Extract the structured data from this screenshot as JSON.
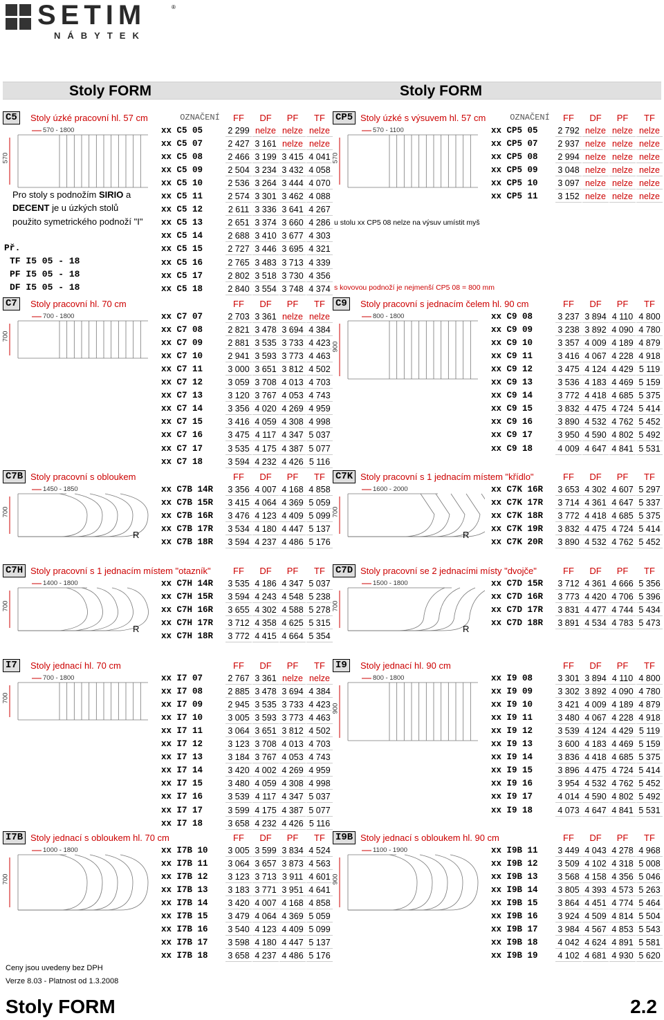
{
  "logo": {
    "brand": "SETIM",
    "registered": "®",
    "sub": "NÁBYTEK"
  },
  "band": {
    "left": "Stoly FORM",
    "right": "Stoly FORM"
  },
  "headers": {
    "oz": "OZNAČENÍ",
    "ff": "FF",
    "df": "DF",
    "pf": "PF",
    "tf": "TF"
  },
  "sections": [
    {
      "id": "c5",
      "code": "C5",
      "title": "Stoly úzké pracovní hl. 57 cm",
      "oz": true,
      "dim_w": "570 - 1800",
      "dim_h": "570",
      "shape": "plain",
      "rows": [
        [
          "xx C5  05",
          "2 299",
          "nelze",
          "nelze",
          "nelze"
        ],
        [
          "xx C5  07",
          "2 427",
          "3 161",
          "nelze",
          "nelze"
        ],
        [
          "xx C5  08",
          "2 466",
          "3 199",
          "3 415",
          "4 041"
        ],
        [
          "xx C5  09",
          "2 504",
          "3 234",
          "3 432",
          "4 058"
        ],
        [
          "xx C5  10",
          "2 536",
          "3 264",
          "3 444",
          "4 070"
        ],
        [
          "xx C5  11",
          "2 574",
          "3 301",
          "3 462",
          "4 088"
        ],
        [
          "xx C5  12",
          "2 611",
          "3 336",
          "3 641",
          "4 267"
        ],
        [
          "xx C5  13",
          "2 651",
          "3 374",
          "3 660",
          "4 286"
        ],
        [
          "xx C5  14",
          "2 688",
          "3 410",
          "3 677",
          "4 303"
        ],
        [
          "xx C5  15",
          "2 727",
          "3 446",
          "3 695",
          "4 321"
        ],
        [
          "xx C5  16",
          "2 765",
          "3 483",
          "3 713",
          "4 339"
        ],
        [
          "xx C5  17",
          "2 802",
          "3 518",
          "3 730",
          "4 356"
        ],
        [
          "xx C5  18",
          "2 840",
          "3 554",
          "3 748",
          "4 374"
        ]
      ]
    },
    {
      "id": "cp5",
      "code": "CP5",
      "title": "Stoly úzké s výsuvem hl. 57 cm",
      "oz": true,
      "dim_w": "570 - 1100",
      "dim_h": "570",
      "shape": "plain",
      "rows": [
        [
          "xx CP5 05",
          "2 792",
          "nelze",
          "nelze",
          "nelze"
        ],
        [
          "xx CP5 07",
          "2 937",
          "nelze",
          "nelze",
          "nelze"
        ],
        [
          "xx CP5 08",
          "2 994",
          "nelze",
          "nelze",
          "nelze"
        ],
        [
          "xx CP5 09",
          "3 048",
          "nelze",
          "nelze",
          "nelze"
        ],
        [
          "xx CP5 10",
          "3 097",
          "nelze",
          "nelze",
          "nelze"
        ],
        [
          "xx CP5 11",
          "3 152",
          "nelze",
          "nelze",
          "nelze"
        ]
      ]
    },
    {
      "id": "c7",
      "code": "C7",
      "title": "Stoly pracovní hl. 70 cm",
      "oz": false,
      "dim_w": "700 - 1800",
      "dim_h": "700",
      "shape": "plain",
      "rows": [
        [
          "xx C7  07",
          "2 703",
          "3 361",
          "nelze",
          "nelze"
        ],
        [
          "xx C7  08",
          "2 821",
          "3 478",
          "3 694",
          "4 384"
        ],
        [
          "xx C7  09",
          "2 881",
          "3 535",
          "3 733",
          "4 423"
        ],
        [
          "xx C7  10",
          "2 941",
          "3 593",
          "3 773",
          "4 463"
        ],
        [
          "xx C7  11",
          "3 000",
          "3 651",
          "3 812",
          "4 502"
        ],
        [
          "xx C7  12",
          "3 059",
          "3 708",
          "4 013",
          "4 703"
        ],
        [
          "xx C7  13",
          "3 120",
          "3 767",
          "4 053",
          "4 743"
        ],
        [
          "xx C7  14",
          "3 356",
          "4 020",
          "4 269",
          "4 959"
        ],
        [
          "xx C7  15",
          "3 416",
          "4 059",
          "4 308",
          "4 998"
        ],
        [
          "xx C7  16",
          "3 475",
          "4 117",
          "4 347",
          "5 037"
        ],
        [
          "xx C7  17",
          "3 535",
          "4 175",
          "4 387",
          "5 077"
        ],
        [
          "xx C7  18",
          "3 594",
          "4 232",
          "4 426",
          "5 116"
        ]
      ]
    },
    {
      "id": "c9",
      "code": "C9",
      "title": "Stoly pracovní s jednacím čelem hl. 90 cm",
      "oz": false,
      "dim_w": "800 - 1800",
      "dim_h": "900",
      "shape": "plain",
      "rows": [
        [
          "xx C9  08",
          "3 237",
          "3 894",
          "4 110",
          "4 800"
        ],
        [
          "xx C9  09",
          "3 238",
          "3 892",
          "4 090",
          "4 780"
        ],
        [
          "xx C9  10",
          "3 357",
          "4 009",
          "4 189",
          "4 879"
        ],
        [
          "xx C9  11",
          "3 416",
          "4 067",
          "4 228",
          "4 918"
        ],
        [
          "xx C9  12",
          "3 475",
          "4 124",
          "4 429",
          "5 119"
        ],
        [
          "xx C9  13",
          "3 536",
          "4 183",
          "4 469",
          "5 159"
        ],
        [
          "xx C9  14",
          "3 772",
          "4 418",
          "4 685",
          "5 375"
        ],
        [
          "xx C9  15",
          "3 832",
          "4 475",
          "4 724",
          "5 414"
        ],
        [
          "xx C9  16",
          "3 890",
          "4 532",
          "4 762",
          "5 452"
        ],
        [
          "xx C9  17",
          "3 950",
          "4 590",
          "4 802",
          "5 492"
        ],
        [
          "xx C9  18",
          "4 009",
          "4 647",
          "4 841",
          "5 531"
        ]
      ]
    },
    {
      "id": "c7b",
      "code": "C7B",
      "title": "Stoly pracovní s obloukem",
      "oz": false,
      "dim_w": "1450 - 1850",
      "dim_h": "700",
      "shape": "arc",
      "rows": [
        [
          "xx C7B 14R",
          "3 356",
          "4 007",
          "4 168",
          "4 858"
        ],
        [
          "xx C7B 15R",
          "3 415",
          "4 064",
          "4 369",
          "5 059"
        ],
        [
          "xx C7B 16R",
          "3 476",
          "4 123",
          "4 409",
          "5 099"
        ],
        [
          "xx C7B 17R",
          "3 534",
          "4 180",
          "4 447",
          "5 137"
        ],
        [
          "xx C7B 18R",
          "3 594",
          "4 237",
          "4 486",
          "5 176"
        ]
      ]
    },
    {
      "id": "c7k",
      "code": "C7K",
      "title": "Stoly pracovní s 1 jednacím místem \"křídlo\"",
      "oz": false,
      "dim_w": "1600 - 2000",
      "dim_h": "700",
      "shape": "wing",
      "rows": [
        [
          "xx C7K 16R",
          "3 653",
          "4 302",
          "4 607",
          "5 297"
        ],
        [
          "xx C7K 17R",
          "3 714",
          "4 361",
          "4 647",
          "5 337"
        ],
        [
          "xx C7K 18R",
          "3 772",
          "4 418",
          "4 685",
          "5 375"
        ],
        [
          "xx C7K 19R",
          "3 832",
          "4 475",
          "4 724",
          "5 414"
        ],
        [
          "xx C7K 20R",
          "3 890",
          "4 532",
          "4 762",
          "5 452"
        ]
      ]
    },
    {
      "id": "c7h",
      "code": "C7H",
      "title": "Stoly pracovní s 1 jednacím místem \"otazník\"",
      "oz": false,
      "dim_w": "1400 - 1800",
      "dim_h": "700",
      "shape": "hook",
      "rows": [
        [
          "xx C7H 14R",
          "3 535",
          "4 186",
          "4 347",
          "5 037"
        ],
        [
          "xx C7H 15R",
          "3 594",
          "4 243",
          "4 548",
          "5 238"
        ],
        [
          "xx C7H 16R",
          "3 655",
          "4 302",
          "4 588",
          "5 278"
        ],
        [
          "xx C7H 17R",
          "3 712",
          "4 358",
          "4 625",
          "5 315"
        ],
        [
          "xx C7H 18R",
          "3 772",
          "4 415",
          "4 664",
          "5 354"
        ]
      ]
    },
    {
      "id": "c7d",
      "code": "C7D",
      "title": "Stoly pracovní se 2 jednacími místy \"dvojče\"",
      "oz": false,
      "dim_w": "1500 - 1800",
      "dim_h": "700",
      "shape": "twin",
      "rows": [
        [
          "xx C7D 15R",
          "3 712",
          "4 361",
          "4 666",
          "5 356"
        ],
        [
          "xx C7D 16R",
          "3 773",
          "4 420",
          "4 706",
          "5 396"
        ],
        [
          "xx C7D 17R",
          "3 831",
          "4 477",
          "4 744",
          "5 434"
        ],
        [
          "xx C7D 18R",
          "3 891",
          "4 534",
          "4 783",
          "5 473"
        ]
      ]
    },
    {
      "id": "i7",
      "code": "I7",
      "title": "Stoly jednací hl. 70 cm",
      "oz": false,
      "dim_w": "700 - 1800",
      "dim_h": "700",
      "shape": "plain",
      "rows": [
        [
          "xx I7  07",
          "2 767",
          "3 361",
          "nelze",
          "nelze"
        ],
        [
          "xx I7  08",
          "2 885",
          "3 478",
          "3 694",
          "4 384"
        ],
        [
          "xx I7  09",
          "2 945",
          "3 535",
          "3 733",
          "4 423"
        ],
        [
          "xx I7  10",
          "3 005",
          "3 593",
          "3 773",
          "4 463"
        ],
        [
          "xx I7  11",
          "3 064",
          "3 651",
          "3 812",
          "4 502"
        ],
        [
          "xx I7  12",
          "3 123",
          "3 708",
          "4 013",
          "4 703"
        ],
        [
          "xx I7  13",
          "3 184",
          "3 767",
          "4 053",
          "4 743"
        ],
        [
          "xx I7  14",
          "3 420",
          "4 002",
          "4 269",
          "4 959"
        ],
        [
          "xx I7  15",
          "3 480",
          "4 059",
          "4 308",
          "4 998"
        ],
        [
          "xx I7  16",
          "3 539",
          "4 117",
          "4 347",
          "5 037"
        ],
        [
          "xx I7  17",
          "3 599",
          "4 175",
          "4 387",
          "5 077"
        ],
        [
          "xx I7  18",
          "3 658",
          "4 232",
          "4 426",
          "5 116"
        ]
      ]
    },
    {
      "id": "i9",
      "code": "I9",
      "title": "Stoly jednací hl. 90 cm",
      "oz": false,
      "dim_w": "800 - 1800",
      "dim_h": "900",
      "shape": "plain",
      "rows": [
        [
          "xx I9  08",
          "3 301",
          "3 894",
          "4 110",
          "4 800"
        ],
        [
          "xx I9  09",
          "3 302",
          "3 892",
          "4 090",
          "4 780"
        ],
        [
          "xx I9  10",
          "3 421",
          "4 009",
          "4 189",
          "4 879"
        ],
        [
          "xx I9  11",
          "3 480",
          "4 067",
          "4 228",
          "4 918"
        ],
        [
          "xx I9  12",
          "3 539",
          "4 124",
          "4 429",
          "5 119"
        ],
        [
          "xx I9  13",
          "3 600",
          "4 183",
          "4 469",
          "5 159"
        ],
        [
          "xx I9  14",
          "3 836",
          "4 418",
          "4 685",
          "5 375"
        ],
        [
          "xx I9  15",
          "3 896",
          "4 475",
          "4 724",
          "5 414"
        ],
        [
          "xx I9  16",
          "3 954",
          "4 532",
          "4 762",
          "5 452"
        ],
        [
          "xx I9  17",
          "4 014",
          "4 590",
          "4 802",
          "5 492"
        ],
        [
          "xx I9  18",
          "4 073",
          "4 647",
          "4 841",
          "5 531"
        ]
      ]
    },
    {
      "id": "i7b",
      "code": "I7B",
      "title": "Stoly jednací s obloukem hl. 70 cm",
      "oz": false,
      "dim_w": "1000 - 1800",
      "dim_h": "700",
      "shape": "arcs",
      "rows": [
        [
          "xx I7B 10",
          "3 005",
          "3 599",
          "3 834",
          "4 524"
        ],
        [
          "xx I7B 11",
          "3 064",
          "3 657",
          "3 873",
          "4 563"
        ],
        [
          "xx I7B 12",
          "3 123",
          "3 713",
          "3 911",
          "4 601"
        ],
        [
          "xx I7B 13",
          "3 183",
          "3 771",
          "3 951",
          "4 641"
        ],
        [
          "xx I7B 14",
          "3 420",
          "4 007",
          "4 168",
          "4 858"
        ],
        [
          "xx I7B 15",
          "3 479",
          "4 064",
          "4 369",
          "5 059"
        ],
        [
          "xx I7B 16",
          "3 540",
          "4 123",
          "4 409",
          "5 099"
        ],
        [
          "xx I7B 17",
          "3 598",
          "4 180",
          "4 447",
          "5 137"
        ],
        [
          "xx I7B 18",
          "3 658",
          "4 237",
          "4 486",
          "5 176"
        ]
      ]
    },
    {
      "id": "i9b",
      "code": "I9B",
      "title": "Stoly jednací s obloukem hl. 90 cm",
      "oz": false,
      "dim_w": "1100 - 1900",
      "dim_h": "900",
      "shape": "arcs",
      "rows": [
        [
          "xx I9B 11",
          "3 449",
          "4 043",
          "4 278",
          "4 968"
        ],
        [
          "xx I9B 12",
          "3 509",
          "4 102",
          "4 318",
          "5 008"
        ],
        [
          "xx I9B 13",
          "3 568",
          "4 158",
          "4 356",
          "5 046"
        ],
        [
          "xx I9B 14",
          "3 805",
          "4 393",
          "4 573",
          "5 263"
        ],
        [
          "xx I9B 15",
          "3 864",
          "4 451",
          "4 774",
          "5 464"
        ],
        [
          "xx I9B 16",
          "3 924",
          "4 509",
          "4 814",
          "5 504"
        ],
        [
          "xx I9B 17",
          "3 984",
          "4 567",
          "4 853",
          "5 543"
        ],
        [
          "xx I9B 18",
          "4 042",
          "4 624",
          "4 891",
          "5 581"
        ],
        [
          "xx I9B 19",
          "4 102",
          "4 681",
          "4 930",
          "5 620"
        ]
      ]
    }
  ],
  "notes": {
    "c5_1": "Pro stoly s podnožím",
    "c5_1b": "SIRIO",
    "c5_1c": "a",
    "c5_2": "DECENT",
    "c5_2b": "je u úzkých stolů",
    "c5_3": "použito symetrického podnoží \"I\"",
    "pr": "Př.",
    "ex1": "TF I5 05 - 18",
    "ex2": "PF I5 05 - 18",
    "ex3": "DF I5 05 - 18",
    "cp5_1": "u stolu xx CP5 08 nelze na výsuv umístit myš",
    "cp5_2": "s kovovou podnoží je nejmenší  CP5 08 = 800 mm",
    "r": "R"
  },
  "footer": {
    "prices": "Ceny jsou uvedeny bez DPH",
    "version": "Verze 8.03 - Platnost od 1.3.2008",
    "title": "Stoly FORM",
    "page": "2.2"
  }
}
